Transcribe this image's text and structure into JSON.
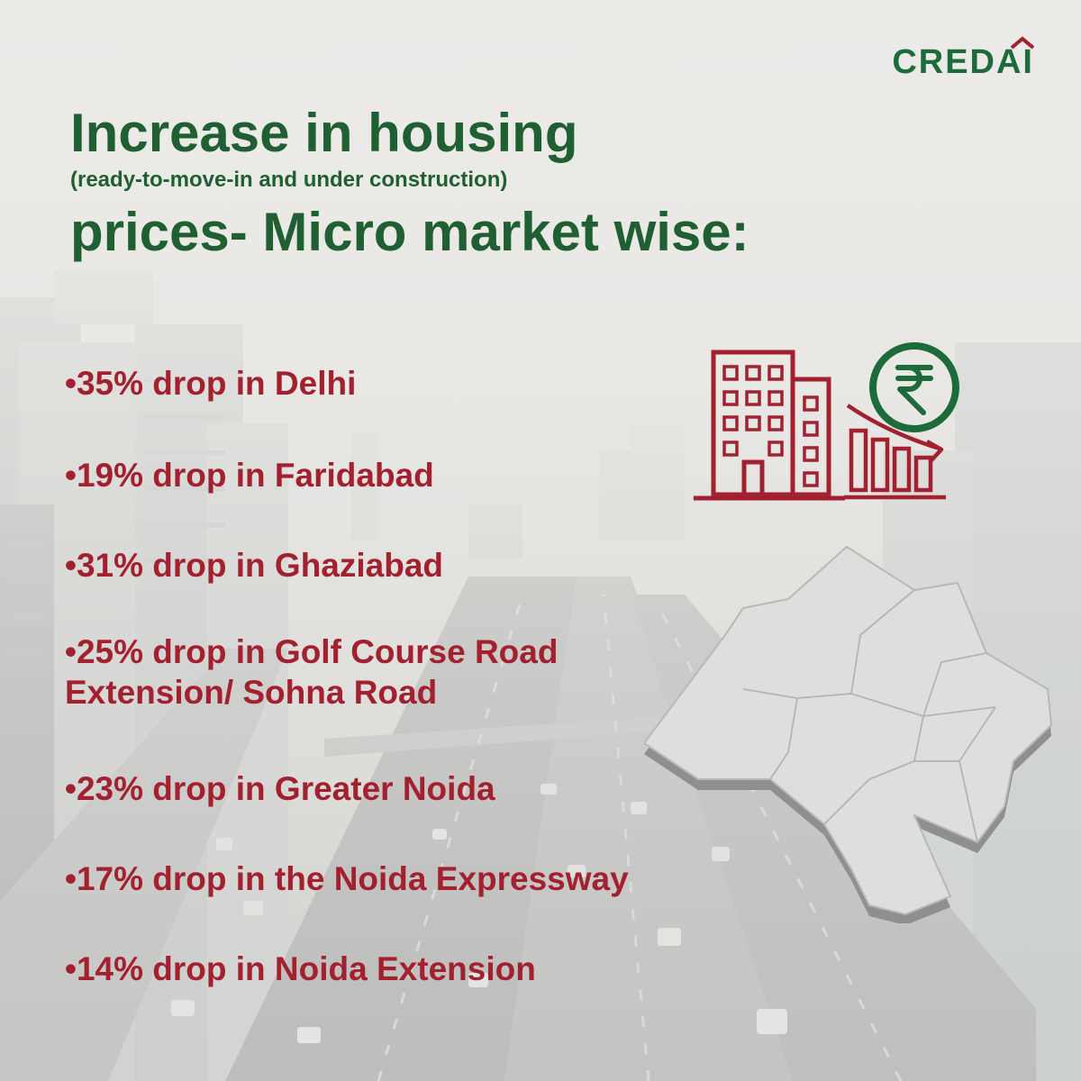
{
  "brand": {
    "logo_text": "CREDAI",
    "primary_color": "#1f5f32",
    "accent_color": "#a3202f"
  },
  "heading": {
    "line1": "Increase in housing",
    "line2": "(ready-to-move-in and under construction)",
    "line3": "prices- Micro market wise:"
  },
  "bullets": [
    {
      "text": "•35% drop in Delhi"
    },
    {
      "text": "•19% drop in Faridabad"
    },
    {
      "text": "•31% drop in Ghaziabad"
    },
    {
      "text": "•25% drop in Golf Course Road\nExtension/ Sohna Road"
    },
    {
      "text": "•23% drop in Greater Noida"
    },
    {
      "text": "•17% drop in the Noida Expressway"
    },
    {
      "text": "•14% drop in Noida Extension"
    }
  ],
  "icons": {
    "building": "building-icon",
    "rupee": "rupee-coin-icon",
    "chart": "declining-bar-chart-icon",
    "map": "delhi-map-icon"
  },
  "background": {
    "description_icon": "city-highway-photo"
  }
}
